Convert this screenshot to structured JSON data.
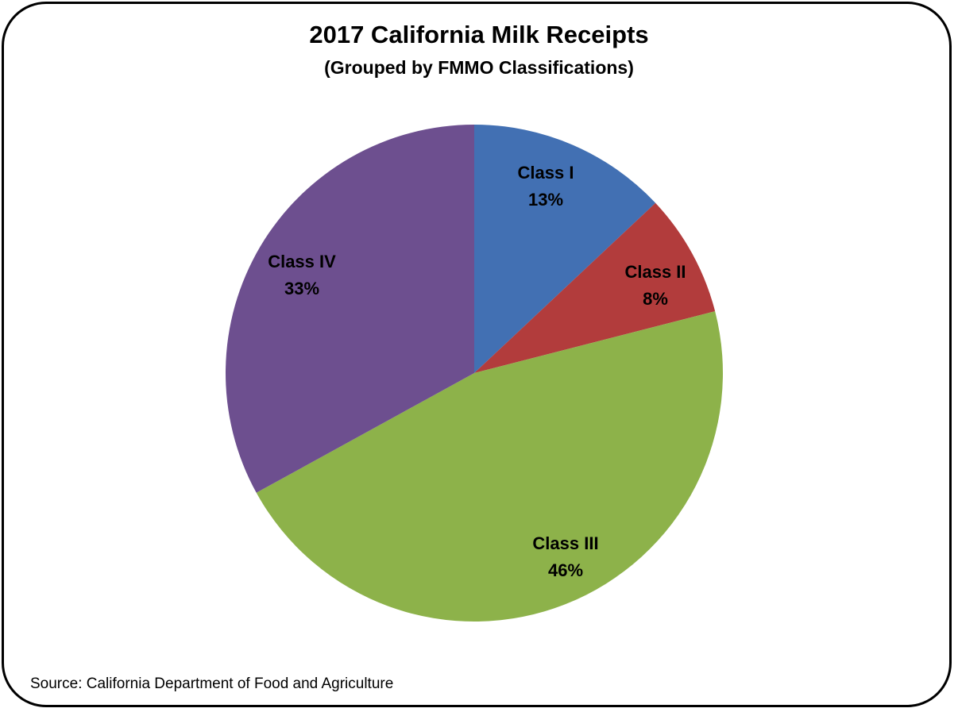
{
  "chart_data": {
    "type": "pie",
    "title": "2017 California Milk Receipts",
    "subtitle": "(Grouped by FMMO Classifications)",
    "slices": [
      {
        "name": "Class I",
        "value": 13,
        "label": "13%",
        "color": "#4270b3"
      },
      {
        "name": "Class II",
        "value": 8,
        "label": "8%",
        "color": "#b23c3c"
      },
      {
        "name": "Class III",
        "value": 46,
        "label": "46%",
        "color": "#8db24a"
      },
      {
        "name": "Class IV",
        "value": 33,
        "label": "33%",
        "color": "#6d4f8f"
      }
    ],
    "start": "12 o'clock",
    "direction": "clockwise",
    "legend": "none"
  },
  "footer": {
    "source": "Source:  California Department of Food and Agriculture"
  }
}
